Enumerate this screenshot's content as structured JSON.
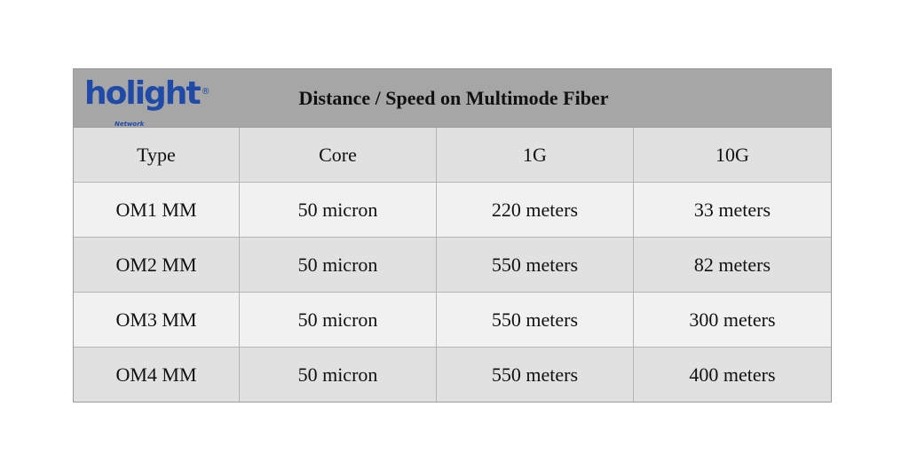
{
  "logo": {
    "name": "holight",
    "registered": "®",
    "subtext": "Network"
  },
  "title": "Distance / Speed on Multimode Fiber",
  "table": {
    "headers": [
      "Type",
      "Core",
      "1G",
      "10G"
    ],
    "rows": [
      [
        "OM1 MM",
        "50 micron",
        "220 meters",
        "33 meters"
      ],
      [
        "OM2 MM",
        "50 micron",
        "550 meters",
        "82 meters"
      ],
      [
        "OM3 MM",
        "50 micron",
        "550 meters",
        "300 meters"
      ],
      [
        "OM4 MM",
        "50 micron",
        "550 meters",
        "400 meters"
      ]
    ]
  },
  "colors": {
    "title_bar": "#a6a6a6",
    "row_dark": "#e1e1e1",
    "row_light": "#f1f1f1",
    "logo_blue": "#1f4aa8"
  }
}
